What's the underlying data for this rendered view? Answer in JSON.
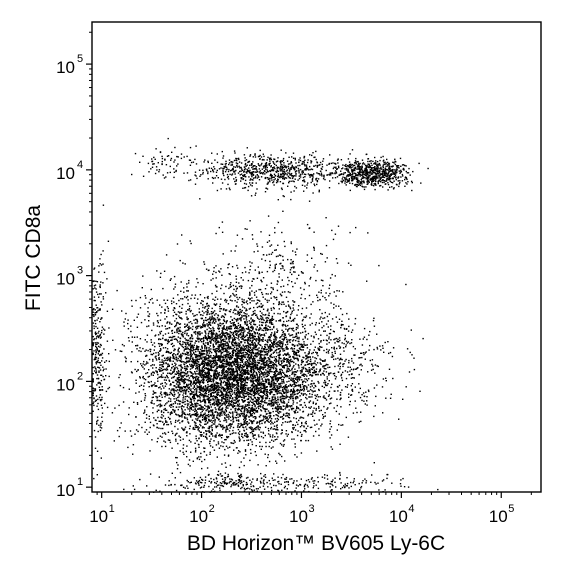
{
  "chart_data": {
    "type": "scatter",
    "title": "",
    "xlabel": "BD Horizon™ BV605 Ly-6C",
    "ylabel": "FITC CD8a",
    "x_scale": "log",
    "y_scale": "log",
    "xlim": [
      8,
      250000
    ],
    "ylim": [
      9,
      250000
    ],
    "x_ticks": [
      {
        "base": "10",
        "exp": "1",
        "value": 10
      },
      {
        "base": "10",
        "exp": "2",
        "value": 100
      },
      {
        "base": "10",
        "exp": "3",
        "value": 1000
      },
      {
        "base": "10",
        "exp": "4",
        "value": 10000
      },
      {
        "base": "10",
        "exp": "5",
        "value": 100000
      }
    ],
    "y_ticks": [
      {
        "base": "10",
        "exp": "1",
        "value": 10
      },
      {
        "base": "10",
        "exp": "2",
        "value": 100
      },
      {
        "base": "10",
        "exp": "3",
        "value": 1000
      },
      {
        "base": "10",
        "exp": "4",
        "value": 10000
      },
      {
        "base": "10",
        "exp": "5",
        "value": 100000
      }
    ],
    "grid": false,
    "legend": "none",
    "point_color": "#000000",
    "populations": [
      {
        "center_x": 250,
        "center_y": 120,
        "spread_x_log": 0.42,
        "spread_y_log": 0.32,
        "count": 5200
      },
      {
        "center_x": 90,
        "center_y": 130,
        "spread_x_log": 0.35,
        "spread_y_log": 0.4,
        "count": 1400
      },
      {
        "center_x": 5000,
        "center_y": 9500,
        "spread_x_log": 0.18,
        "spread_y_log": 0.06,
        "count": 650
      },
      {
        "center_x": 500,
        "center_y": 9800,
        "spread_x_log": 0.4,
        "spread_y_log": 0.08,
        "count": 750
      },
      {
        "center_x": 40,
        "center_y": 12000,
        "spread_x_log": 0.15,
        "spread_y_log": 0.08,
        "count": 60
      },
      {
        "center_x": 2000,
        "center_y": 150,
        "spread_x_log": 0.35,
        "spread_y_log": 0.25,
        "count": 350
      },
      {
        "center_x": 600,
        "center_y": 900,
        "spread_x_log": 0.35,
        "spread_y_log": 0.3,
        "count": 300
      },
      {
        "center_x": 200,
        "center_y": 11,
        "spread_x_log": 0.4,
        "spread_y_log": 0.05,
        "count": 220
      },
      {
        "center_x": 9,
        "center_y": 200,
        "spread_x_log": 0.04,
        "spread_y_log": 0.45,
        "count": 260
      },
      {
        "center_x": 2000,
        "center_y": 11,
        "spread_x_log": 0.35,
        "spread_y_log": 0.05,
        "count": 100
      }
    ]
  }
}
